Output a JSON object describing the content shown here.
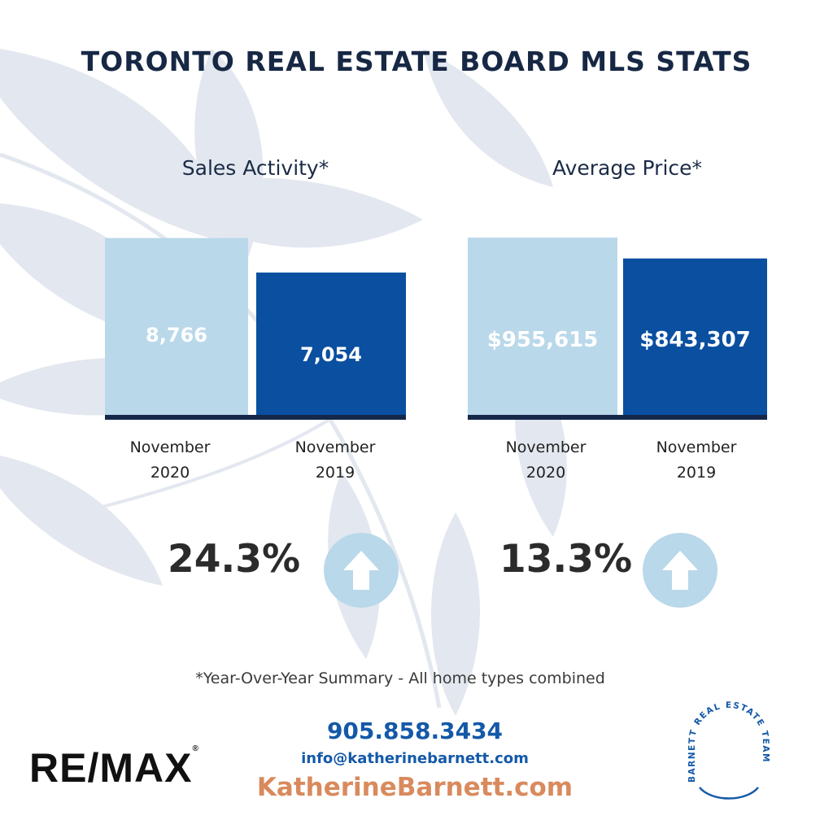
{
  "title": "TORONTO REAL ESTATE BOARD MLS STATS",
  "colors": {
    "bar_2020": "#b9d8ea",
    "bar_2019": "#0a4fa0",
    "baseline": "#15284a",
    "circle": "#b9d8ea",
    "leaf": "#e3e7ef"
  },
  "chart_data": [
    {
      "type": "bar",
      "title": "Sales Activity*",
      "categories": [
        "November 2020",
        "November 2019"
      ],
      "values": [
        8766,
        7054
      ],
      "value_labels": [
        "8,766",
        "7,054"
      ],
      "ylim": [
        0,
        10000
      ],
      "change": "24.3%",
      "change_direction": "up"
    },
    {
      "type": "bar",
      "title": "Average Price*",
      "categories": [
        "November 2020",
        "November 2019"
      ],
      "values": [
        955615,
        843307
      ],
      "value_labels": [
        "$955,615",
        "$843,307"
      ],
      "ylim": [
        0,
        1000000
      ],
      "change": "13.3%",
      "change_direction": "up"
    }
  ],
  "labels": {
    "sales": {
      "x1_line1": "November",
      "x1_line2": "2020",
      "x2_line1": "November",
      "x2_line2": "2019"
    },
    "price": {
      "x1_line1": "November",
      "x1_line2": "2020",
      "x2_line1": "November",
      "x2_line2": "2019"
    }
  },
  "footnote": "*Year-Over-Year Summary - All home types combined",
  "contact": {
    "phone": "905.858.3434",
    "email": "info@katherinebarnett.com",
    "website": "KatherineBarnett.com"
  },
  "brand": {
    "remax": "RE/MAX",
    "remax_mark": "®",
    "team": "BARNETT REAL ESTATE TEAM"
  },
  "icons": {
    "leaf": "leaf-background-icon",
    "arrow": "arrow-up-icon"
  }
}
